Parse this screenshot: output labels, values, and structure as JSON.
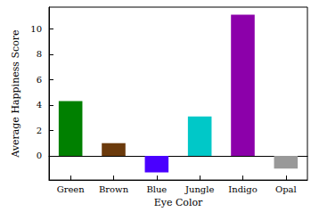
{
  "chart_data": {
    "type": "bar",
    "x_label": "Eye Color",
    "y_label": "Average Happiness Score",
    "categories": [
      "Green",
      "Brown",
      "Blue",
      "Jungle",
      "Indigo",
      "Opal"
    ],
    "values": [
      4.3,
      1.0,
      -1.3,
      3.1,
      11.1,
      -1.0
    ],
    "colors": [
      "#008000",
      "#6b3a0c",
      "#4a00ff",
      "#00c8c8",
      "#8c00aa",
      "#999999"
    ],
    "ylim": [
      -1.9,
      11.7
    ],
    "yticks": [
      0,
      2,
      4,
      6,
      8,
      10
    ],
    "grid": false
  }
}
